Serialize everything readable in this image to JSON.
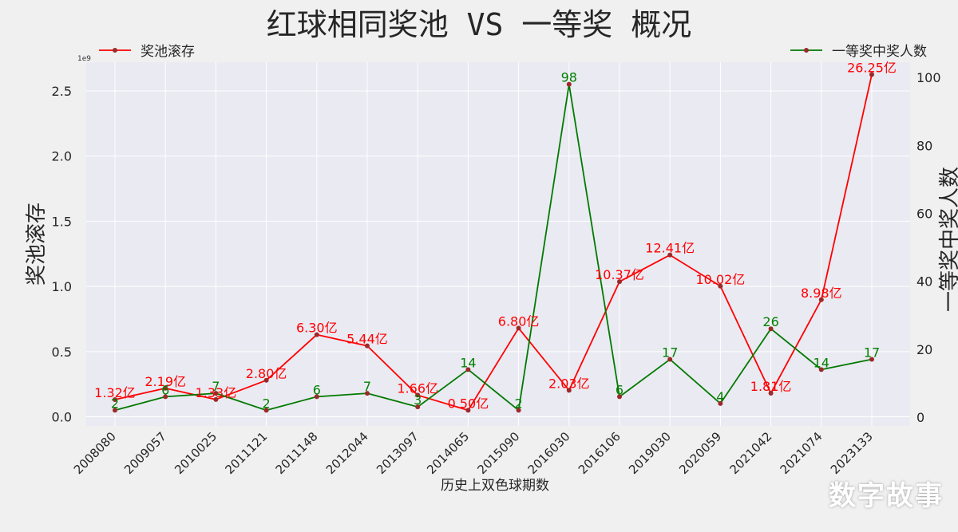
{
  "chart_data": {
    "type": "line",
    "title": "红球相同奖池 VS 一等奖 概况",
    "xlabel": "历史上双色球期数",
    "ylabel_left": "奖池滚存",
    "ylabel_right": "一等奖中奖人数",
    "left_axis_offset_label": "1e9",
    "categories": [
      "2008080",
      "2009057",
      "2010025",
      "2011121",
      "2011148",
      "2012044",
      "2013097",
      "2014065",
      "2015090",
      "2016030",
      "2016106",
      "2019030",
      "2020059",
      "2021042",
      "2021074",
      "2023133"
    ],
    "left_ylim": [
      -0.07,
      2.72
    ],
    "left_yticks": [
      0.0,
      0.5,
      1.0,
      1.5,
      2.0,
      2.5
    ],
    "left_yticklabels": [
      "0.0",
      "0.5",
      "1.0",
      "1.5",
      "2.0",
      "2.5"
    ],
    "right_ylim": [
      -2.6,
      104.5
    ],
    "right_yticks": [
      0,
      20,
      40,
      60,
      80,
      100
    ],
    "right_yticklabels": [
      "0",
      "20",
      "40",
      "60",
      "80",
      "100"
    ],
    "grid": true,
    "series": [
      {
        "name": "奖池滚存",
        "axis": "left",
        "color": "#ff0000",
        "label_color": "#ff0000",
        "values": [
          0.132,
          0.219,
          0.133,
          0.28,
          0.63,
          0.544,
          0.166,
          0.05,
          0.68,
          0.203,
          1.037,
          1.241,
          1.002,
          0.181,
          0.898,
          2.625
        ],
        "labels": [
          "1.32亿",
          "2.19亿",
          "1.33亿",
          "2.80亿",
          "6.30亿",
          "5.44亿",
          "1.66亿",
          "0.50亿",
          "6.80亿",
          "2.03亿",
          "10.37亿",
          "12.41亿",
          "10.02亿",
          "1.81亿",
          "8.98亿",
          "26.25亿"
        ]
      },
      {
        "name": "一等奖中奖人数",
        "axis": "right",
        "color": "#007a00",
        "label_color": "#008000",
        "values": [
          2,
          6,
          7,
          2,
          6,
          7,
          3,
          14,
          2,
          98,
          6,
          17,
          4,
          26,
          14,
          17
        ],
        "labels": [
          "2",
          "6",
          "7",
          "2",
          "6",
          "7",
          "3",
          "14",
          "2",
          "98",
          "6",
          "17",
          "4",
          "26",
          "14",
          "17"
        ]
      }
    ],
    "legend": [
      {
        "name": "奖池滚存",
        "placement": "top-left"
      },
      {
        "name": "一等奖中奖人数",
        "placement": "top-right"
      }
    ],
    "marker_color": "#9b2a2a"
  },
  "watermark": "数字故事"
}
